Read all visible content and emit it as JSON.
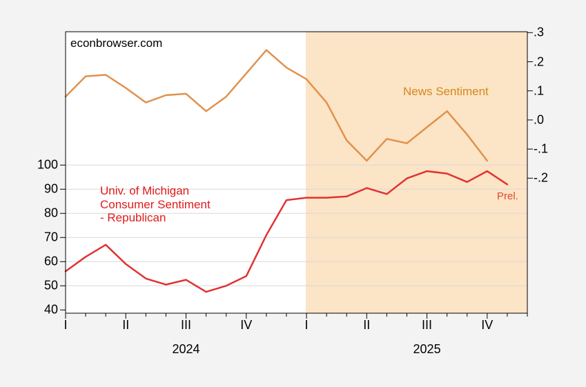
{
  "watermark": "econbrowser.com",
  "colors": {
    "background": "#f3f3f3",
    "plot_background": "#ffffff",
    "shade_2025": "#fce4c6",
    "gridline": "#d8d8d8",
    "axis_line": "#000000",
    "news_line": "#e0914d",
    "news_label": "#d4881c",
    "umich_line": "#e03232",
    "umich_label": "#e01a1a",
    "prel_label": "#e2462f"
  },
  "annotations": {
    "news_label": "News Sentiment",
    "umich_label_lines": [
      "Univ. of Michigan",
      "Consumer Sentiment",
      "- Republican"
    ],
    "prel_label": "Prel."
  },
  "chart_data": {
    "type": "line",
    "title": "",
    "x_unit": "month",
    "start_month": "2024-01",
    "grid": "horizontal-left-axis-only",
    "shaded_region": {
      "start_month_index": 12,
      "end_month_index": 23,
      "meaning": "year 2025"
    },
    "left_axis": {
      "side": "left",
      "ticks": [
        100,
        90,
        80,
        70,
        60,
        50,
        40
      ],
      "min": 40,
      "max": 100,
      "series_label": "Univ. of Michigan Consumer Sentiment - Republican"
    },
    "right_axis": {
      "side": "right",
      "tick_labels": [
        ".3",
        ".2",
        ".1",
        ".0",
        "-.1",
        "-.2"
      ],
      "tick_values": [
        0.3,
        0.2,
        0.1,
        0.0,
        -0.1,
        -0.2
      ],
      "series_label": "News Sentiment"
    },
    "x_axis": {
      "quarter_labels": [
        {
          "label": "I",
          "month_index": 0
        },
        {
          "label": "II",
          "month_index": 3
        },
        {
          "label": "III",
          "month_index": 6
        },
        {
          "label": "IV",
          "month_index": 9
        },
        {
          "label": "I",
          "month_index": 12
        },
        {
          "label": "II",
          "month_index": 15
        },
        {
          "label": "III",
          "month_index": 18
        },
        {
          "label": "IV",
          "month_index": 21
        }
      ],
      "year_labels": [
        {
          "label": "2024",
          "center_month_index": 6
        },
        {
          "label": "2025",
          "center_month_index": 18
        }
      ],
      "minor_ticks_every_month": true,
      "total_months": 24
    },
    "series": [
      {
        "name": "News Sentiment",
        "axis": "right",
        "color_key": "news_line",
        "start_month_index": 0,
        "months": [
          "2024-01",
          "2024-02",
          "2024-03",
          "2024-04",
          "2024-05",
          "2024-06",
          "2024-07",
          "2024-08",
          "2024-09",
          "2024-10",
          "2024-11",
          "2024-12",
          "2025-01",
          "2025-02",
          "2025-03",
          "2025-04",
          "2025-05",
          "2025-06",
          "2025-07",
          "2025-08",
          "2025-09",
          "2025-10"
        ],
        "values": [
          0.08,
          0.15,
          0.155,
          0.11,
          0.06,
          0.085,
          0.09,
          0.03,
          0.08,
          0.16,
          0.24,
          0.18,
          0.14,
          0.06,
          -0.07,
          -0.14,
          -0.065,
          -0.08,
          -0.025,
          0.03,
          -0.05,
          -0.14
        ]
      },
      {
        "name": "Univ. of Michigan Consumer Sentiment - Republican",
        "axis": "left",
        "color_key": "umich_line",
        "start_month_index": 0,
        "months": [
          "2024-01",
          "2024-02",
          "2024-03",
          "2024-04",
          "2024-05",
          "2024-06",
          "2024-07",
          "2024-08",
          "2024-09",
          "2024-10",
          "2024-11",
          "2024-12",
          "2025-01",
          "2025-02",
          "2025-03",
          "2025-04",
          "2025-05",
          "2025-06",
          "2025-07",
          "2025-08",
          "2025-09",
          "2025-10",
          "2025-11"
        ],
        "values": [
          56,
          62,
          67,
          59,
          53,
          50.5,
          52.5,
          47.5,
          50,
          54,
          71,
          85.5,
          86.5,
          86.5,
          87,
          90.5,
          88,
          94.5,
          97.5,
          96.5,
          93,
          97.5,
          92
        ],
        "last_point_note": "Prel."
      }
    ]
  }
}
